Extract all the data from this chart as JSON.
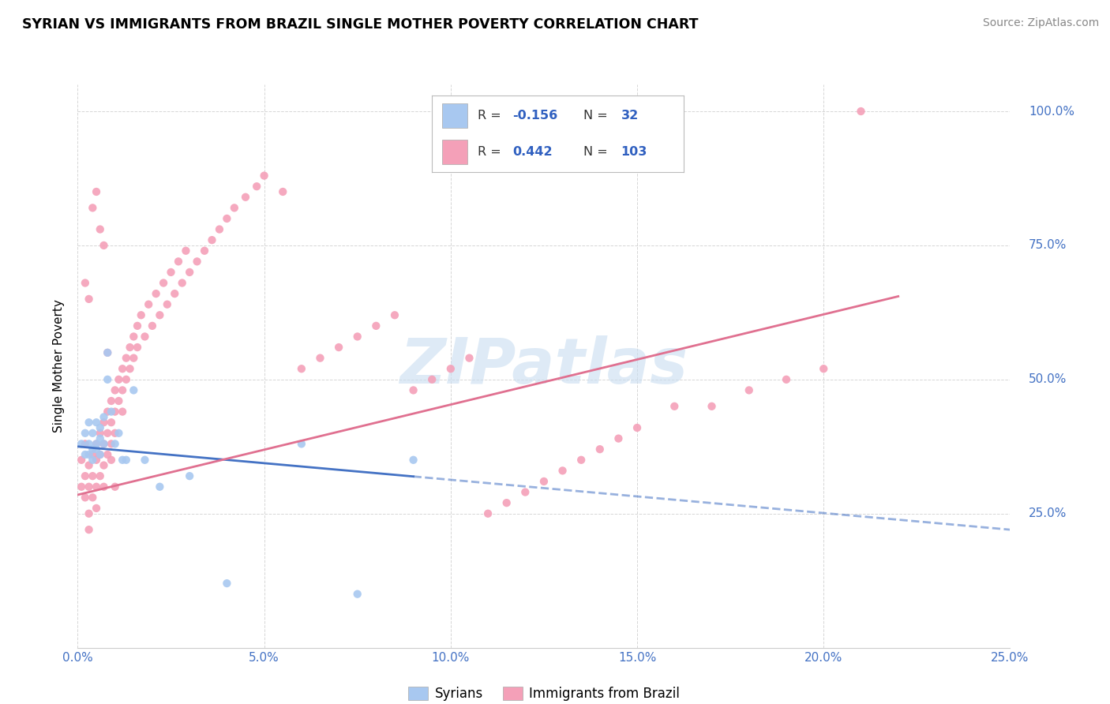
{
  "title": "SYRIAN VS IMMIGRANTS FROM BRAZIL SINGLE MOTHER POVERTY CORRELATION CHART",
  "source": "Source: ZipAtlas.com",
  "ylabel": "Single Mother Poverty",
  "xlim": [
    0.0,
    0.25
  ],
  "ylim": [
    0.0,
    1.05
  ],
  "color_syrian": "#a8c8f0",
  "color_brazil": "#f4a0b8",
  "color_syrian_line": "#4472c4",
  "color_brazil_line": "#e07090",
  "color_tick": "#4472c4",
  "watermark_text": "ZIPatlas",
  "watermark_color": "#c8ddf0",
  "legend_r1_val": "-0.156",
  "legend_n1_val": "32",
  "legend_r2_val": "0.442",
  "legend_n2_val": "103",
  "syrian_line_x0": 0.0,
  "syrian_line_y0": 0.375,
  "syrian_line_x1": 0.25,
  "syrian_line_y1": 0.22,
  "brazil_line_x0": 0.0,
  "brazil_line_y0": 0.285,
  "brazil_line_x1": 0.22,
  "brazil_line_y1": 0.655,
  "syrian_pts_x": [
    0.001,
    0.002,
    0.002,
    0.003,
    0.003,
    0.003,
    0.004,
    0.004,
    0.004,
    0.005,
    0.005,
    0.005,
    0.006,
    0.006,
    0.006,
    0.007,
    0.007,
    0.008,
    0.008,
    0.009,
    0.01,
    0.011,
    0.012,
    0.013,
    0.015,
    0.018,
    0.022,
    0.03,
    0.04,
    0.06,
    0.075,
    0.09
  ],
  "syrian_pts_y": [
    0.38,
    0.4,
    0.36,
    0.42,
    0.38,
    0.36,
    0.4,
    0.37,
    0.35,
    0.42,
    0.38,
    0.37,
    0.39,
    0.41,
    0.36,
    0.43,
    0.38,
    0.55,
    0.5,
    0.44,
    0.38,
    0.4,
    0.35,
    0.35,
    0.48,
    0.35,
    0.3,
    0.32,
    0.12,
    0.38,
    0.1,
    0.35
  ],
  "brazil_pts_x": [
    0.001,
    0.001,
    0.002,
    0.002,
    0.002,
    0.003,
    0.003,
    0.003,
    0.003,
    0.004,
    0.004,
    0.004,
    0.005,
    0.005,
    0.005,
    0.005,
    0.006,
    0.006,
    0.006,
    0.007,
    0.007,
    0.007,
    0.007,
    0.008,
    0.008,
    0.008,
    0.009,
    0.009,
    0.009,
    0.01,
    0.01,
    0.01,
    0.011,
    0.011,
    0.012,
    0.012,
    0.012,
    0.013,
    0.013,
    0.014,
    0.014,
    0.015,
    0.015,
    0.016,
    0.016,
    0.017,
    0.018,
    0.019,
    0.02,
    0.021,
    0.022,
    0.023,
    0.024,
    0.025,
    0.026,
    0.027,
    0.028,
    0.029,
    0.03,
    0.032,
    0.034,
    0.036,
    0.038,
    0.04,
    0.042,
    0.045,
    0.048,
    0.05,
    0.055,
    0.06,
    0.065,
    0.07,
    0.075,
    0.08,
    0.085,
    0.09,
    0.095,
    0.1,
    0.105,
    0.11,
    0.115,
    0.12,
    0.125,
    0.13,
    0.135,
    0.14,
    0.145,
    0.15,
    0.16,
    0.17,
    0.18,
    0.19,
    0.2,
    0.002,
    0.003,
    0.004,
    0.005,
    0.006,
    0.007,
    0.008,
    0.009,
    0.01,
    0.21
  ],
  "brazil_pts_y": [
    0.35,
    0.3,
    0.32,
    0.38,
    0.28,
    0.34,
    0.3,
    0.25,
    0.22,
    0.36,
    0.32,
    0.28,
    0.38,
    0.35,
    0.3,
    0.26,
    0.4,
    0.36,
    0.32,
    0.42,
    0.38,
    0.34,
    0.3,
    0.44,
    0.4,
    0.36,
    0.46,
    0.42,
    0.38,
    0.48,
    0.44,
    0.4,
    0.5,
    0.46,
    0.52,
    0.48,
    0.44,
    0.54,
    0.5,
    0.56,
    0.52,
    0.58,
    0.54,
    0.6,
    0.56,
    0.62,
    0.58,
    0.64,
    0.6,
    0.66,
    0.62,
    0.68,
    0.64,
    0.7,
    0.66,
    0.72,
    0.68,
    0.74,
    0.7,
    0.72,
    0.74,
    0.76,
    0.78,
    0.8,
    0.82,
    0.84,
    0.86,
    0.88,
    0.85,
    0.52,
    0.54,
    0.56,
    0.58,
    0.6,
    0.62,
    0.48,
    0.5,
    0.52,
    0.54,
    0.25,
    0.27,
    0.29,
    0.31,
    0.33,
    0.35,
    0.37,
    0.39,
    0.41,
    0.45,
    0.45,
    0.48,
    0.5,
    0.52,
    0.68,
    0.65,
    0.82,
    0.85,
    0.78,
    0.75,
    0.55,
    0.35,
    0.3,
    1.0
  ]
}
